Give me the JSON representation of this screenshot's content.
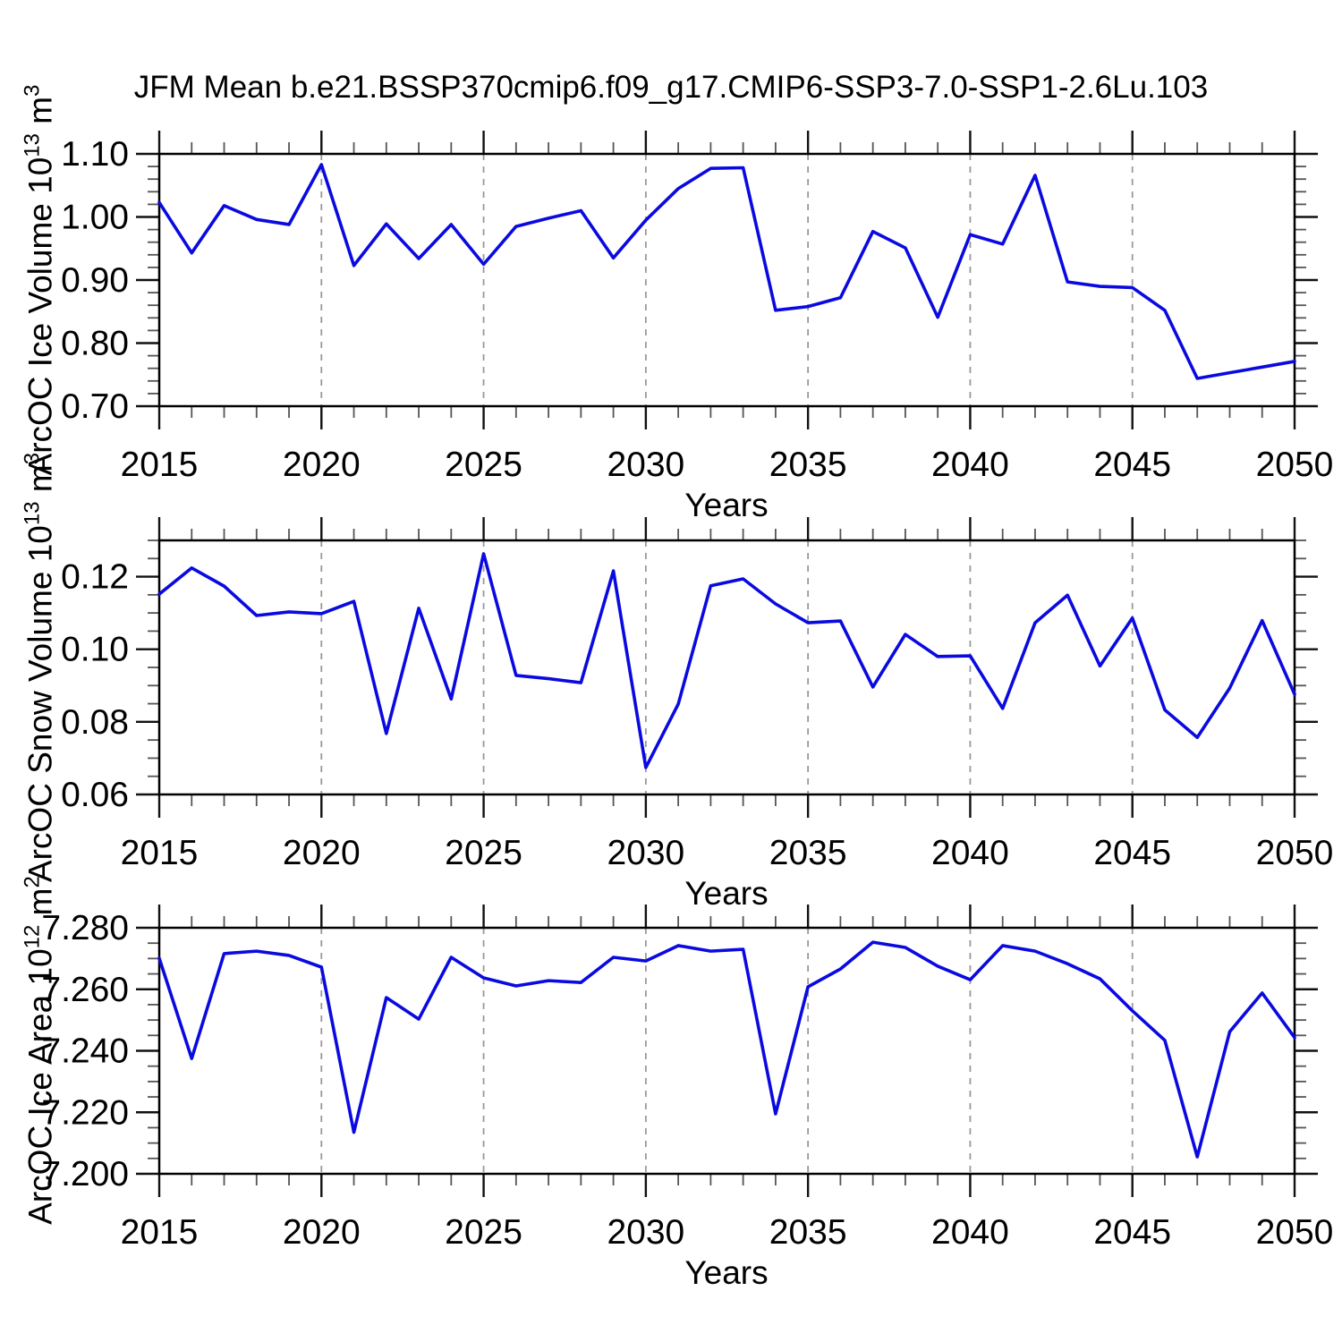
{
  "title": "JFM Mean b.e21.BSSP370cmip6.f09_g17.CMIP6-SSP3-7.0-SSP1-2.6Lu.103",
  "line_color": "#0a0ae0",
  "gridline_color": "#999999",
  "frame_color": "#000000",
  "chart_data": [
    {
      "type": "line",
      "title": "",
      "xlabel": "Years",
      "ylabel": "ArcOC Ice Volume 10^13 m^3",
      "ylabel_parts": {
        "base": "ArcOC Ice Volume 10",
        "exp": "13",
        "unit": " m",
        "unit_exp": "3"
      },
      "x": [
        2015,
        2016,
        2017,
        2018,
        2019,
        2020,
        2021,
        2022,
        2023,
        2024,
        2025,
        2026,
        2027,
        2028,
        2029,
        2030,
        2031,
        2032,
        2033,
        2034,
        2035,
        2036,
        2037,
        2038,
        2039,
        2040,
        2041,
        2042,
        2043,
        2044,
        2045,
        2046,
        2047,
        2048,
        2049,
        2050
      ],
      "values": [
        1.023,
        0.943,
        1.018,
        0.996,
        0.988,
        1.083,
        0.923,
        0.989,
        0.934,
        0.988,
        0.925,
        0.985,
        0.998,
        1.01,
        0.935,
        0.995,
        1.045,
        1.077,
        1.078,
        0.852,
        0.858,
        0.872,
        0.977,
        0.951,
        0.841,
        0.972,
        0.957,
        1.066,
        0.897,
        0.89,
        0.888,
        0.852,
        0.744,
        0.753,
        0.762,
        0.771
      ],
      "xlim": [
        2015,
        2050
      ],
      "ylim": [
        0.7,
        1.1
      ],
      "xticks": {
        "labels": [
          "2015",
          "2020",
          "2025",
          "2030",
          "2035",
          "2040",
          "2045",
          "2050"
        ],
        "values": [
          2015,
          2020,
          2025,
          2030,
          2035,
          2040,
          2045,
          2050
        ],
        "minor_step": 1
      },
      "yticks": {
        "labels": [
          "1.10",
          "1.00",
          "0.90",
          "0.80",
          "0.70"
        ],
        "values": [
          1.1,
          1.0,
          0.9,
          0.8,
          0.7
        ],
        "minor_step": 0.02
      },
      "grid_x": [
        2020,
        2025,
        2030,
        2035,
        2040,
        2045
      ],
      "legend": "none"
    },
    {
      "type": "line",
      "title": "",
      "xlabel": "Years",
      "ylabel": "ArcOC Snow Volume 10^13 m^3",
      "ylabel_parts": {
        "base": "ArcOC Snow Volume 10",
        "exp": "13",
        "unit": " m",
        "unit_exp": "3"
      },
      "x": [
        2015,
        2016,
        2017,
        2018,
        2019,
        2020,
        2021,
        2022,
        2023,
        2024,
        2025,
        2026,
        2027,
        2028,
        2029,
        2030,
        2031,
        2032,
        2033,
        2034,
        2035,
        2036,
        2037,
        2038,
        2039,
        2040,
        2041,
        2042,
        2043,
        2044,
        2045,
        2046,
        2047,
        2048,
        2049,
        2050
      ],
      "values": [
        0.1152,
        0.1224,
        0.1174,
        0.1093,
        0.1103,
        0.1098,
        0.1132,
        0.0768,
        0.1113,
        0.0863,
        0.1263,
        0.0928,
        0.0919,
        0.0908,
        0.1216,
        0.0674,
        0.0849,
        0.1175,
        0.1194,
        0.1125,
        0.1073,
        0.1078,
        0.0896,
        0.1041,
        0.098,
        0.0982,
        0.0837,
        0.1073,
        0.1149,
        0.0954,
        0.1086,
        0.0833,
        0.0757,
        0.0893,
        0.1079,
        0.0876
      ],
      "xlim": [
        2015,
        2050
      ],
      "ylim": [
        0.06,
        0.13
      ],
      "xticks": {
        "labels": [
          "2015",
          "2020",
          "2025",
          "2030",
          "2035",
          "2040",
          "2045",
          "2050"
        ],
        "values": [
          2015,
          2020,
          2025,
          2030,
          2035,
          2040,
          2045,
          2050
        ],
        "minor_step": 1
      },
      "yticks": {
        "labels": [
          "0.12",
          "0.10",
          "0.08",
          "0.06"
        ],
        "values": [
          0.12,
          0.1,
          0.08,
          0.06
        ],
        "minor_step": 0.005
      },
      "grid_x": [
        2020,
        2025,
        2030,
        2035,
        2040,
        2045
      ],
      "legend": "none"
    },
    {
      "type": "line",
      "title": "",
      "xlabel": "Years",
      "ylabel": "ArcOC Ice Area 10^12 m^2",
      "ylabel_parts": {
        "base": "ArcOC Ice Area 10",
        "exp": "12",
        "unit": " m",
        "unit_exp": "2"
      },
      "x": [
        2015,
        2016,
        2017,
        2018,
        2019,
        2020,
        2021,
        2022,
        2023,
        2024,
        2025,
        2026,
        2027,
        2028,
        2029,
        2030,
        2031,
        2032,
        2033,
        2034,
        2035,
        2036,
        2037,
        2038,
        2039,
        2040,
        2041,
        2042,
        2043,
        2044,
        2045,
        2046,
        2047,
        2048,
        2049,
        2050
      ],
      "values": [
        7.2701,
        7.2375,
        7.2716,
        7.2724,
        7.271,
        7.2672,
        7.2135,
        7.2573,
        7.2503,
        7.2704,
        7.2637,
        7.2611,
        7.2628,
        7.2622,
        7.2704,
        7.2692,
        7.2742,
        7.2724,
        7.273,
        7.2195,
        7.2608,
        7.2666,
        7.2753,
        7.2736,
        7.2675,
        7.2631,
        7.2742,
        7.2724,
        7.2683,
        7.2634,
        7.253,
        7.2434,
        7.2055,
        7.2462,
        7.2588,
        7.2443
      ],
      "xlim": [
        2015,
        2050
      ],
      "ylim": [
        7.2,
        7.28
      ],
      "xticks": {
        "labels": [
          "2015",
          "2020",
          "2025",
          "2030",
          "2035",
          "2040",
          "2045",
          "2050"
        ],
        "values": [
          2015,
          2020,
          2025,
          2030,
          2035,
          2040,
          2045,
          2050
        ],
        "minor_step": 1
      },
      "yticks": {
        "labels": [
          "7.280",
          "7.260",
          "7.240",
          "7.220",
          "7.200"
        ],
        "values": [
          7.28,
          7.26,
          7.24,
          7.22,
          7.2
        ],
        "minor_step": 0.005
      },
      "grid_x": [
        2020,
        2025,
        2030,
        2035,
        2040,
        2045
      ],
      "legend": "none"
    }
  ]
}
